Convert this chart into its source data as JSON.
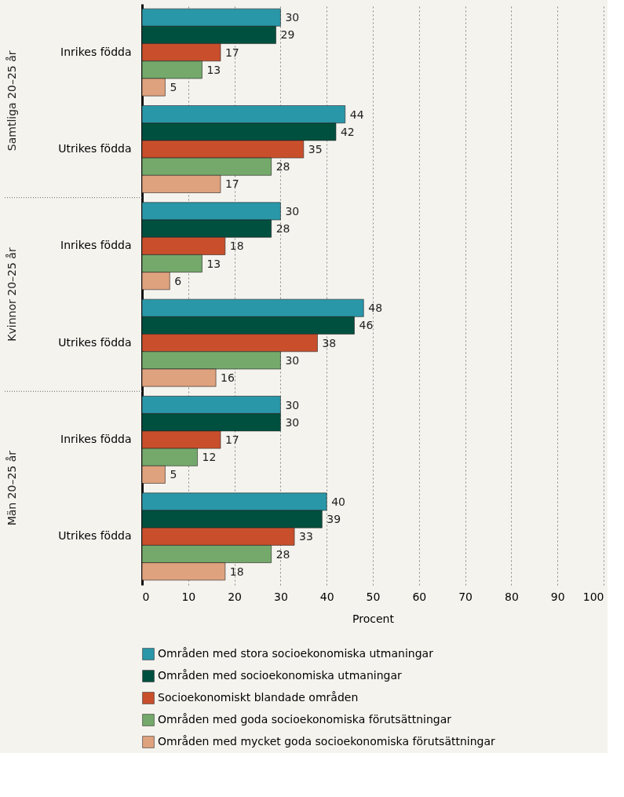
{
  "chart_data": {
    "type": "bar",
    "orientation": "horizontal",
    "xlabel": "Procent",
    "categories": [
      "Inrikes födda",
      "Utrikes födda",
      "Inrikes födda",
      "Utrikes födda",
      "Inrikes födda",
      "Utrikes födda"
    ],
    "annotations": [
      "Samtliga 20–25 år",
      "Kvinnor 20–25 år",
      "Män 20–25 år"
    ],
    "series": [
      {
        "name": "Områden med stora socioekonomiska utmaningar",
        "color": "#2a97a8",
        "values": [
          30,
          44,
          30,
          48,
          30,
          40
        ]
      },
      {
        "name": "Områden med socioekonomiska utmaningar",
        "color": "#00503f",
        "values": [
          29,
          42,
          28,
          46,
          30,
          39
        ]
      },
      {
        "name": "Socioekonomiskt blandade områden",
        "color": "#c94f2c",
        "values": [
          17,
          35,
          18,
          38,
          17,
          33
        ]
      },
      {
        "name": "Områden med goda socioekonomiska förutsättningar",
        "color": "#74a96b",
        "values": [
          13,
          28,
          13,
          30,
          12,
          28
        ]
      },
      {
        "name": "Områden med mycket goda socioekonomiska förutsättningar",
        "color": "#dfa27e",
        "values": [
          5,
          17,
          6,
          16,
          5,
          18
        ]
      }
    ],
    "xlim": [
      0,
      100
    ],
    "xticks": [
      0,
      10,
      20,
      30,
      40,
      50,
      60,
      70,
      80,
      90,
      100
    ],
    "grid": "x",
    "data_labels": true,
    "legend": "bottom"
  }
}
